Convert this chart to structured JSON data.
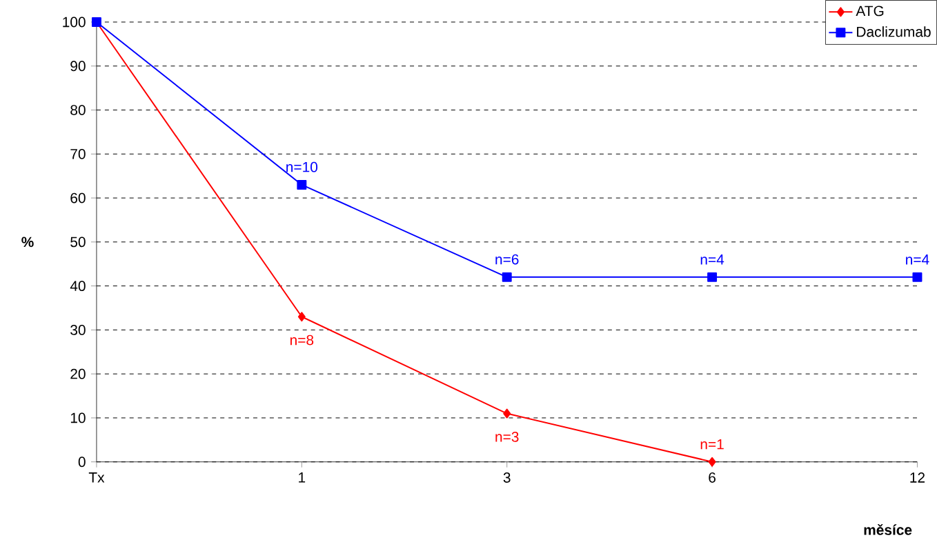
{
  "chart_data": {
    "type": "line",
    "xlabel": "měsíce",
    "ylabel": "%",
    "categories": [
      "Tx",
      "1",
      "3",
      "6",
      "12"
    ],
    "series": [
      {
        "name": "ATG",
        "color": "#ff0000",
        "marker": "diamond",
        "values": [
          100,
          33,
          11,
          0,
          null
        ]
      },
      {
        "name": "Daclizumab",
        "color": "#0000ff",
        "marker": "square",
        "values": [
          100,
          63,
          42,
          42,
          42
        ]
      }
    ],
    "annotations": [
      {
        "text": "n=10",
        "x": "1",
        "y": 63
      },
      {
        "text": "n=8",
        "x": "1",
        "y": 33
      },
      {
        "text": "n=6",
        "x": "3",
        "y": 42
      },
      {
        "text": "n=3",
        "x": "3",
        "y": 11
      },
      {
        "text": "n=4",
        "x": "6",
        "y": 42
      },
      {
        "text": "n=1",
        "x": "6",
        "y": 0
      },
      {
        "text": "n=4",
        "x": "12",
        "y": 42
      }
    ],
    "ylim": [
      0,
      100
    ],
    "yticks": [
      0,
      10,
      20,
      30,
      40,
      50,
      60,
      70,
      80,
      90,
      100
    ],
    "grid": "y",
    "legend": "top right",
    "line_style": "solid"
  }
}
